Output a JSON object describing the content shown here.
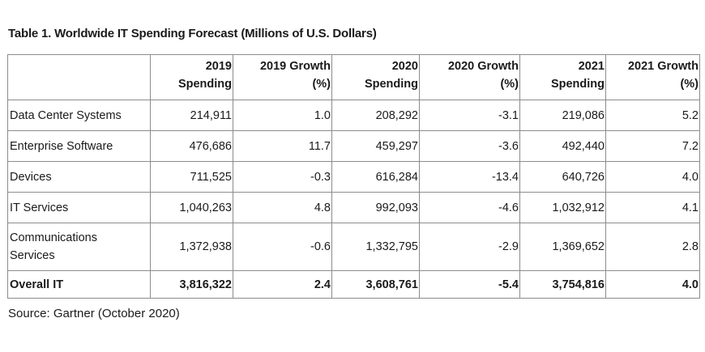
{
  "title": "Table 1. Worldwide IT Spending Forecast (Millions of U.S. Dollars)",
  "columns": [
    {
      "line1": "2019",
      "line2": "Spending"
    },
    {
      "line1": "2019 Growth",
      "line2": "(%)"
    },
    {
      "line1": "2020",
      "line2": "Spending"
    },
    {
      "line1": "2020 Growth",
      "line2": "(%)"
    },
    {
      "line1": "2021",
      "line2": "Spending"
    },
    {
      "line1": "2021 Growth",
      "line2": "(%)"
    }
  ],
  "rows": [
    {
      "label": "Data Center Systems",
      "values": [
        "214,911",
        "1.0",
        "208,292",
        "-3.1",
        "219,086",
        "5.2"
      ]
    },
    {
      "label": "Enterprise Software",
      "values": [
        "476,686",
        "11.7",
        "459,297",
        "-3.6",
        "492,440",
        "7.2"
      ]
    },
    {
      "label": "Devices",
      "values": [
        "711,525",
        "-0.3",
        "616,284",
        "-13.4",
        "640,726",
        "4.0"
      ]
    },
    {
      "label": "IT Services",
      "values": [
        "1,040,263",
        "4.8",
        "992,093",
        "-4.6",
        "1,032,912",
        "4.1"
      ]
    },
    {
      "label": "Communications Services",
      "label_lines": [
        "Communications",
        "Services"
      ],
      "values": [
        "1,372,938",
        "-0.6",
        "1,332,795",
        "-2.9",
        "1,369,652",
        "2.8"
      ]
    }
  ],
  "total": {
    "label": "Overall IT",
    "values": [
      "3,816,322",
      "2.4",
      "3,608,761",
      "-5.4",
      "3,754,816",
      "4.0"
    ]
  },
  "source": "Source: Gartner (October 2020)"
}
